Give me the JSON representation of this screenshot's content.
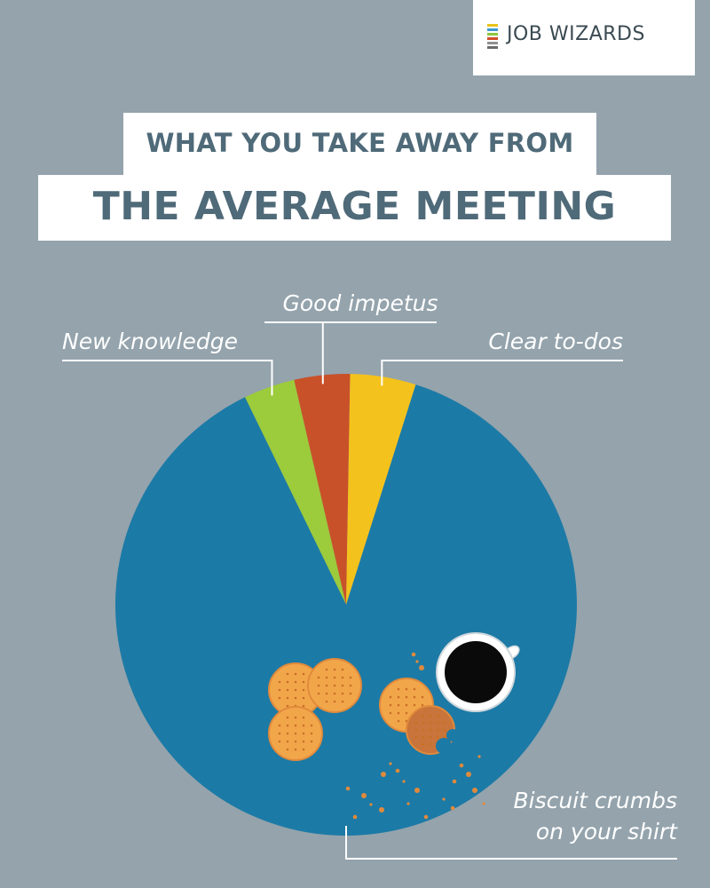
{
  "brand": {
    "name": "JOB WIZARDS",
    "bar_colors": [
      "#e8c21a",
      "#3d9bd0",
      "#8cc63e",
      "#d24e2b",
      "#8f8f8f",
      "#6a6a6a"
    ]
  },
  "title": {
    "line1": "WHAT YOU TAKE AWAY FROM",
    "line2": "THE AVERAGE MEETING"
  },
  "colors": {
    "background": "#94a3ac",
    "title_text": "#4f6a78"
  },
  "chart_data": {
    "type": "pie",
    "categories": [
      "New knowledge",
      "Good impetus",
      "Clear to-dos",
      "Biscuit crumbs on your shirt"
    ],
    "values": [
      3.6,
      3.9,
      4.6,
      87.9
    ],
    "colors": [
      "#9ccb3b",
      "#c8512a",
      "#f4c21c",
      "#1c7aa6"
    ],
    "label_lines": {
      "Biscuit crumbs on your shirt": [
        "Biscuit crumbs",
        "on your shirt"
      ]
    },
    "start_angle_deg": -26
  }
}
